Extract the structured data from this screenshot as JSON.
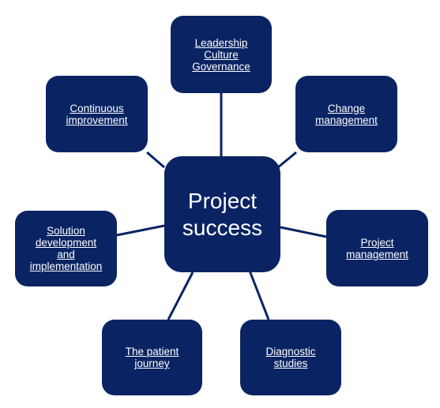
{
  "center": {
    "label": "Project\nsuccess"
  },
  "nodes": [
    {
      "id": "leadership",
      "label": "Leadership\nCulture\nGovernance"
    },
    {
      "id": "change",
      "label": "Change\nmanagement"
    },
    {
      "id": "project-management",
      "label": "Project\nmanagement"
    },
    {
      "id": "diagnostic",
      "label": "Diagnostic\nstudies"
    },
    {
      "id": "patient-journey",
      "label": "The patient\njourney"
    },
    {
      "id": "solution",
      "label": "Solution\ndevelopment\nand\nimplementation"
    },
    {
      "id": "continuous",
      "label": "Continuous\nimprovement"
    }
  ],
  "colors": {
    "box_fill": "#0a2463",
    "connector": "#0a2463",
    "text": "#ffffff",
    "background": "#ffffff"
  }
}
